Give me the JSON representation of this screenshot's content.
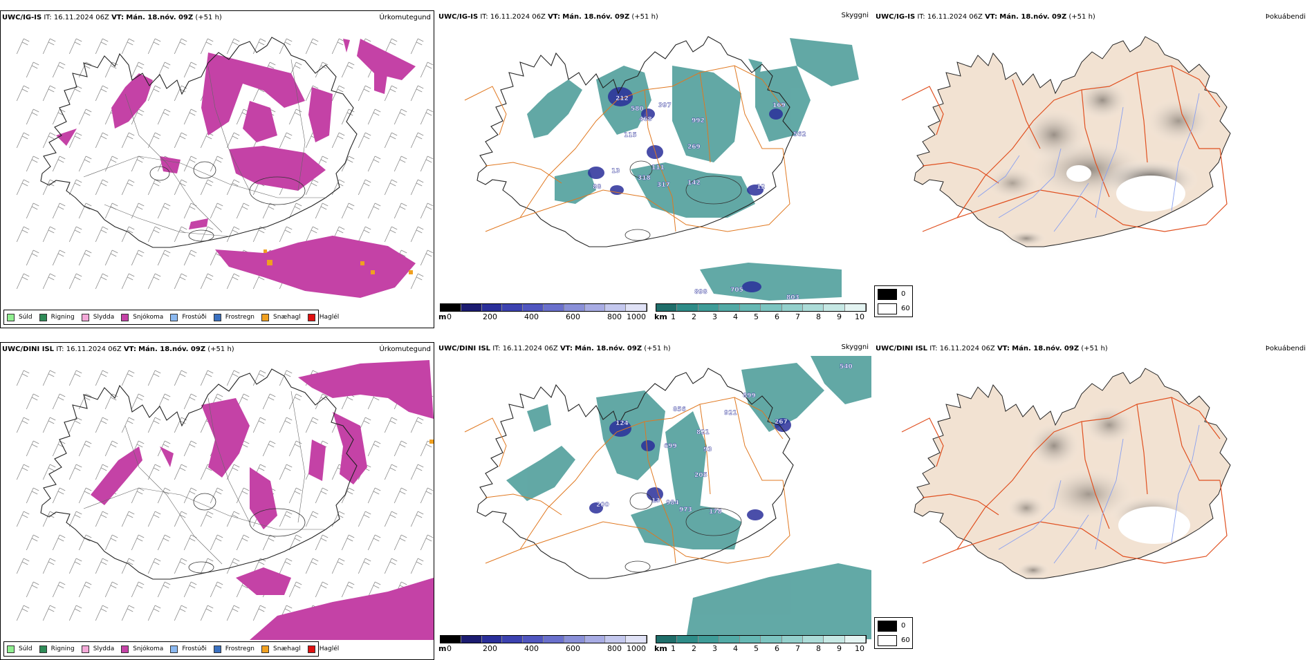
{
  "colors": {
    "precip_snow": "#c442a6",
    "precip_sleet_dot": "#f0a020",
    "cloud_teal": "#2e8c88",
    "cloud_blue": "#2a2f9a",
    "roads_orange": "#e07820",
    "land_beige": "#f2e2d2",
    "rivers_blue": "#8aa0f0",
    "roads_red": "#e05020"
  },
  "rows": [
    {
      "model": "UWC/IG-IS",
      "it_label": "IT:",
      "it_value": "16.11.2024 06Z",
      "vt_label": "VT:",
      "vt_value": "Mán. 18.nóv. 09Z",
      "lead": "(+51 h)",
      "panel_titles": [
        "Úrkomutegund",
        "Skyggni",
        "Þokuábendi"
      ],
      "ceiling_labels": [
        "212",
        "580",
        "397",
        "468",
        "992",
        "169",
        "115",
        "562",
        "269",
        "111",
        "13",
        "318",
        "317",
        "142",
        "12",
        "88",
        "898",
        "705",
        "803"
      ]
    },
    {
      "model": "UWC/DINI ISL",
      "it_label": "IT:",
      "it_value": "16.11.2024 06Z",
      "vt_label": "VT:",
      "vt_value": "Mán. 18.nóv. 09Z",
      "lead": "(+51 h)",
      "panel_titles": [
        "Úrkomutegund",
        "Skyggni",
        "Þokuábendi"
      ],
      "ceiling_labels": [
        "856",
        "899",
        "821",
        "921",
        "267",
        "124",
        "699",
        "93",
        "205",
        "13",
        "984",
        "973",
        "178",
        "200",
        "540"
      ]
    }
  ],
  "precip_legend": [
    {
      "label": "Súld",
      "color": "#90ee90"
    },
    {
      "label": "Rigning",
      "color": "#2e8b57"
    },
    {
      "label": "Slydda",
      "color": "#f4a8d8"
    },
    {
      "label": "Snjókoma",
      "color": "#c442a6"
    },
    {
      "label": "Frostúði",
      "color": "#8ab8f0"
    },
    {
      "label": "Frostregn",
      "color": "#3a70c0"
    },
    {
      "label": "Snæhagl",
      "color": "#f0a020"
    },
    {
      "label": "Haglél",
      "color": "#e01010"
    }
  ],
  "ceiling_bar": {
    "unit": "m",
    "ticks": [
      "0",
      "200",
      "400",
      "600",
      "800",
      "1000"
    ],
    "colors": [
      "#000000",
      "#1c1c70",
      "#2a2f9a",
      "#3c42b0",
      "#5056c0",
      "#6a70cc",
      "#8a90d8",
      "#a8acE4",
      "#c4c8ee",
      "#e0e2f6"
    ]
  },
  "visibility_bar": {
    "unit": "km",
    "ticks": [
      "1",
      "2",
      "3",
      "4",
      "5",
      "6",
      "7",
      "8",
      "9",
      "10"
    ],
    "colors": [
      "#1f6e6a",
      "#2e8c88",
      "#3f9c98",
      "#52aaa6",
      "#66b8b4",
      "#7cc4c0",
      "#94d0cc",
      "#acdcd8",
      "#c6e8e4",
      "#e4f4f2"
    ]
  },
  "fog_legend": {
    "high": "0",
    "low": "60"
  }
}
